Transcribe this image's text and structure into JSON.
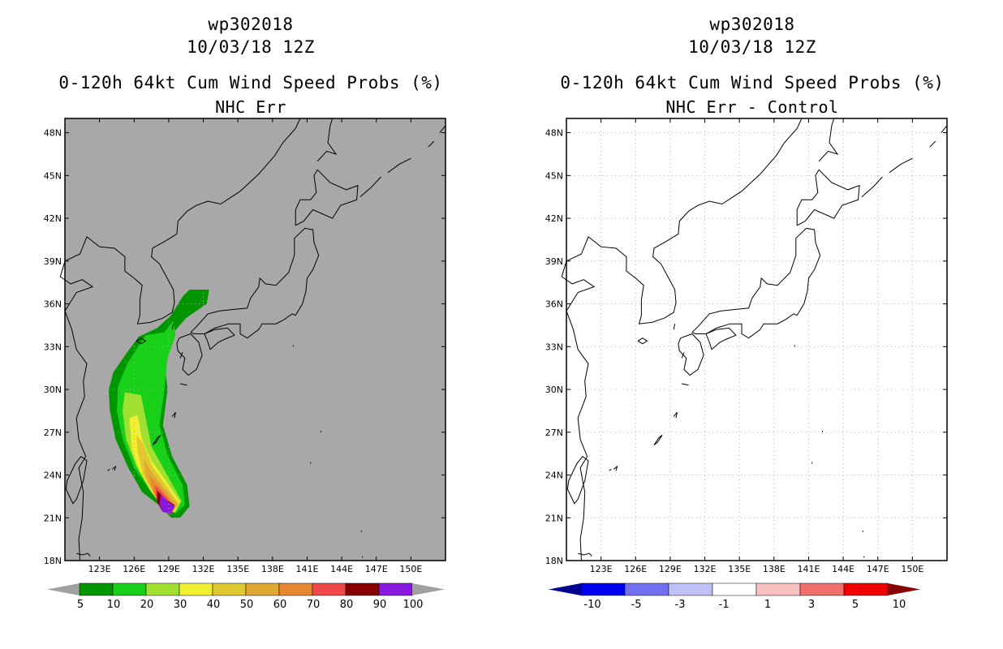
{
  "panels": [
    {
      "storm_id": "wp302018",
      "date_time": "10/03/18 12Z",
      "product": "0-120h 64kt Cum Wind Speed Probs (%)",
      "subtitle": "NHC Err",
      "background": "#a8a8a8",
      "colorbar": {
        "labels": [
          "5",
          "10",
          "20",
          "30",
          "40",
          "50",
          "60",
          "70",
          "80",
          "90",
          "100"
        ],
        "colors": [
          "#a0a0a0",
          "#009600",
          "#18d018",
          "#a0e030",
          "#f0f030",
          "#e0c830",
          "#e0a830",
          "#e88830",
          "#f04848",
          "#880000",
          "#8818e0",
          "#a0a0a0"
        ]
      }
    },
    {
      "storm_id": "wp302018",
      "date_time": "10/03/18 12Z",
      "product": "0-120h 64kt Cum Wind Speed Probs (%)",
      "subtitle": "NHC Err - Control",
      "background": "#ffffff",
      "colorbar": {
        "labels": [
          "-10",
          "-5",
          "-3",
          "-1",
          "1",
          "3",
          "5",
          "10"
        ],
        "colors": [
          "#000090",
          "#0000f0",
          "#7070f0",
          "#c0c0f8",
          "#ffffff",
          "#f8c0c0",
          "#f07070",
          "#f00000",
          "#880000"
        ]
      }
    }
  ],
  "map": {
    "lon_labels": [
      "123E",
      "126E",
      "129E",
      "132E",
      "135E",
      "138E",
      "141E",
      "144E",
      "147E",
      "150E"
    ],
    "lat_labels": [
      "18N",
      "21N",
      "24N",
      "27N",
      "30N",
      "33N",
      "36N",
      "39N",
      "42N",
      "45N",
      "48N"
    ],
    "lon_range": [
      120,
      153
    ],
    "lat_range": [
      18,
      49
    ]
  }
}
